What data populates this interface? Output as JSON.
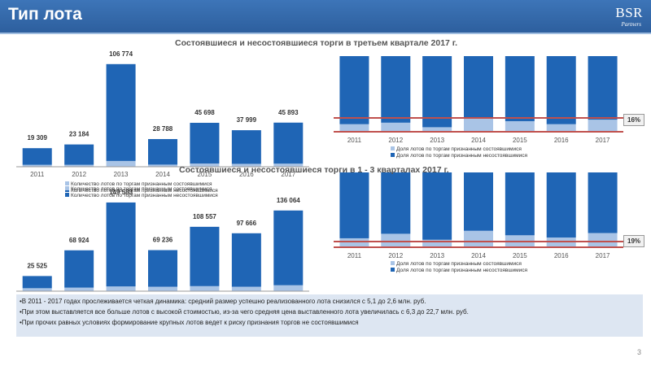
{
  "header": {
    "title": "Тип лота",
    "logo_text": "BSR",
    "logo_subtext": "Partners"
  },
  "colors": {
    "header_bg": "#2d5f9e",
    "bar_blue": "#1f65b5",
    "bar_light": "#a9c4e6",
    "red_line": "#c0504d",
    "notes_bg": "#dde6f2"
  },
  "charts": {
    "title_q3": "Состоявшиеся и несостоявшиеся торги в третьем квартале 2017 г.",
    "title_q1_3": "Состоявшиеся и несостоявшиеся торги в 1 - 3 кварталах 2017 г.",
    "pct_q3": "16%",
    "pct_q1_3": "19%"
  },
  "chart_data": [
    {
      "type": "bar",
      "stacked": true,
      "categories": [
        "2011",
        "2012",
        "2013",
        "2014",
        "2015",
        "2016",
        "2017"
      ],
      "series": [
        {
          "name": "Количество лотов по торгам признанным состоявшимися",
          "values": [
            2000,
            2000,
            6000,
            2200,
            3300,
            3000,
            3200
          ]
        },
        {
          "name": "Количество лотов по торгам признанным несостоявшимися",
          "values": [
            17309,
            21184,
            100774,
            26588,
            42398,
            34999,
            42693
          ]
        }
      ],
      "data_labels": [
        "19 309",
        "23 184",
        "106 774",
        "28 788",
        "45 698",
        "37 999",
        "45 893"
      ],
      "legend": "bottom-left"
    },
    {
      "type": "bar",
      "stacked": true,
      "percent": true,
      "categories": [
        "2011",
        "2012",
        "2013",
        "2014",
        "2015",
        "2016",
        "2017"
      ],
      "series": [
        {
          "name": "Доля лотов по торгам признанным состоявшимися",
          "values": [
            10,
            12,
            6,
            19,
            14,
            10,
            16
          ]
        },
        {
          "name": "Доля лотов по торгам признанным несостоявшимися",
          "values": [
            90,
            88,
            94,
            81,
            86,
            90,
            84
          ]
        }
      ],
      "annotation": "16%",
      "legend": "bottom"
    },
    {
      "type": "bar",
      "stacked": true,
      "categories": [
        "2011",
        "2012",
        "2013",
        "2014",
        "2015",
        "2016",
        "2017"
      ],
      "series": [
        {
          "name": "Количество лотов по торгам признанным состоявшимися",
          "values": [
            5000,
            6000,
            8000,
            7500,
            8500,
            7500,
            10000
          ]
        },
        {
          "name": "Количество лотов по торгам признанным несостоявшимися",
          "values": [
            20525,
            62924,
            141583,
            61736,
            100057,
            90166,
            126064
          ]
        }
      ],
      "data_labels": [
        "25 525",
        "68 924",
        "149 583",
        "69 236",
        "108 557",
        "97 666",
        "136 064"
      ],
      "legend": "top-left"
    },
    {
      "type": "bar",
      "stacked": true,
      "percent": true,
      "categories": [
        "2011",
        "2012",
        "2013",
        "2014",
        "2015",
        "2016",
        "2017"
      ],
      "series": [
        {
          "name": "Доля лотов по торгам признанным состоявшимися",
          "values": [
            12,
            18,
            10,
            22,
            16,
            13,
            19
          ]
        },
        {
          "name": "Доля лотов по торгам признанным несостоявшимися",
          "values": [
            88,
            82,
            90,
            78,
            84,
            87,
            81
          ]
        }
      ],
      "annotation": "19%",
      "legend": "bottom"
    }
  ],
  "notes": [
    "•В  2011 - 2017 годах прослеживается четкая динамика: средний размер успешно реализованного лота снизился с 5,1 до 2,6 млн. руб.",
    "•При этом выставляется все больше лотов с высокой стоимостью, из-за чего средняя цена выставленного лота увеличилась с 6,3 до 22,7 млн. руб.",
    "•При прочих равных условиях формирование крупных лотов ведет к риску признания торгов не состоявшимися"
  ],
  "page_number": "3"
}
